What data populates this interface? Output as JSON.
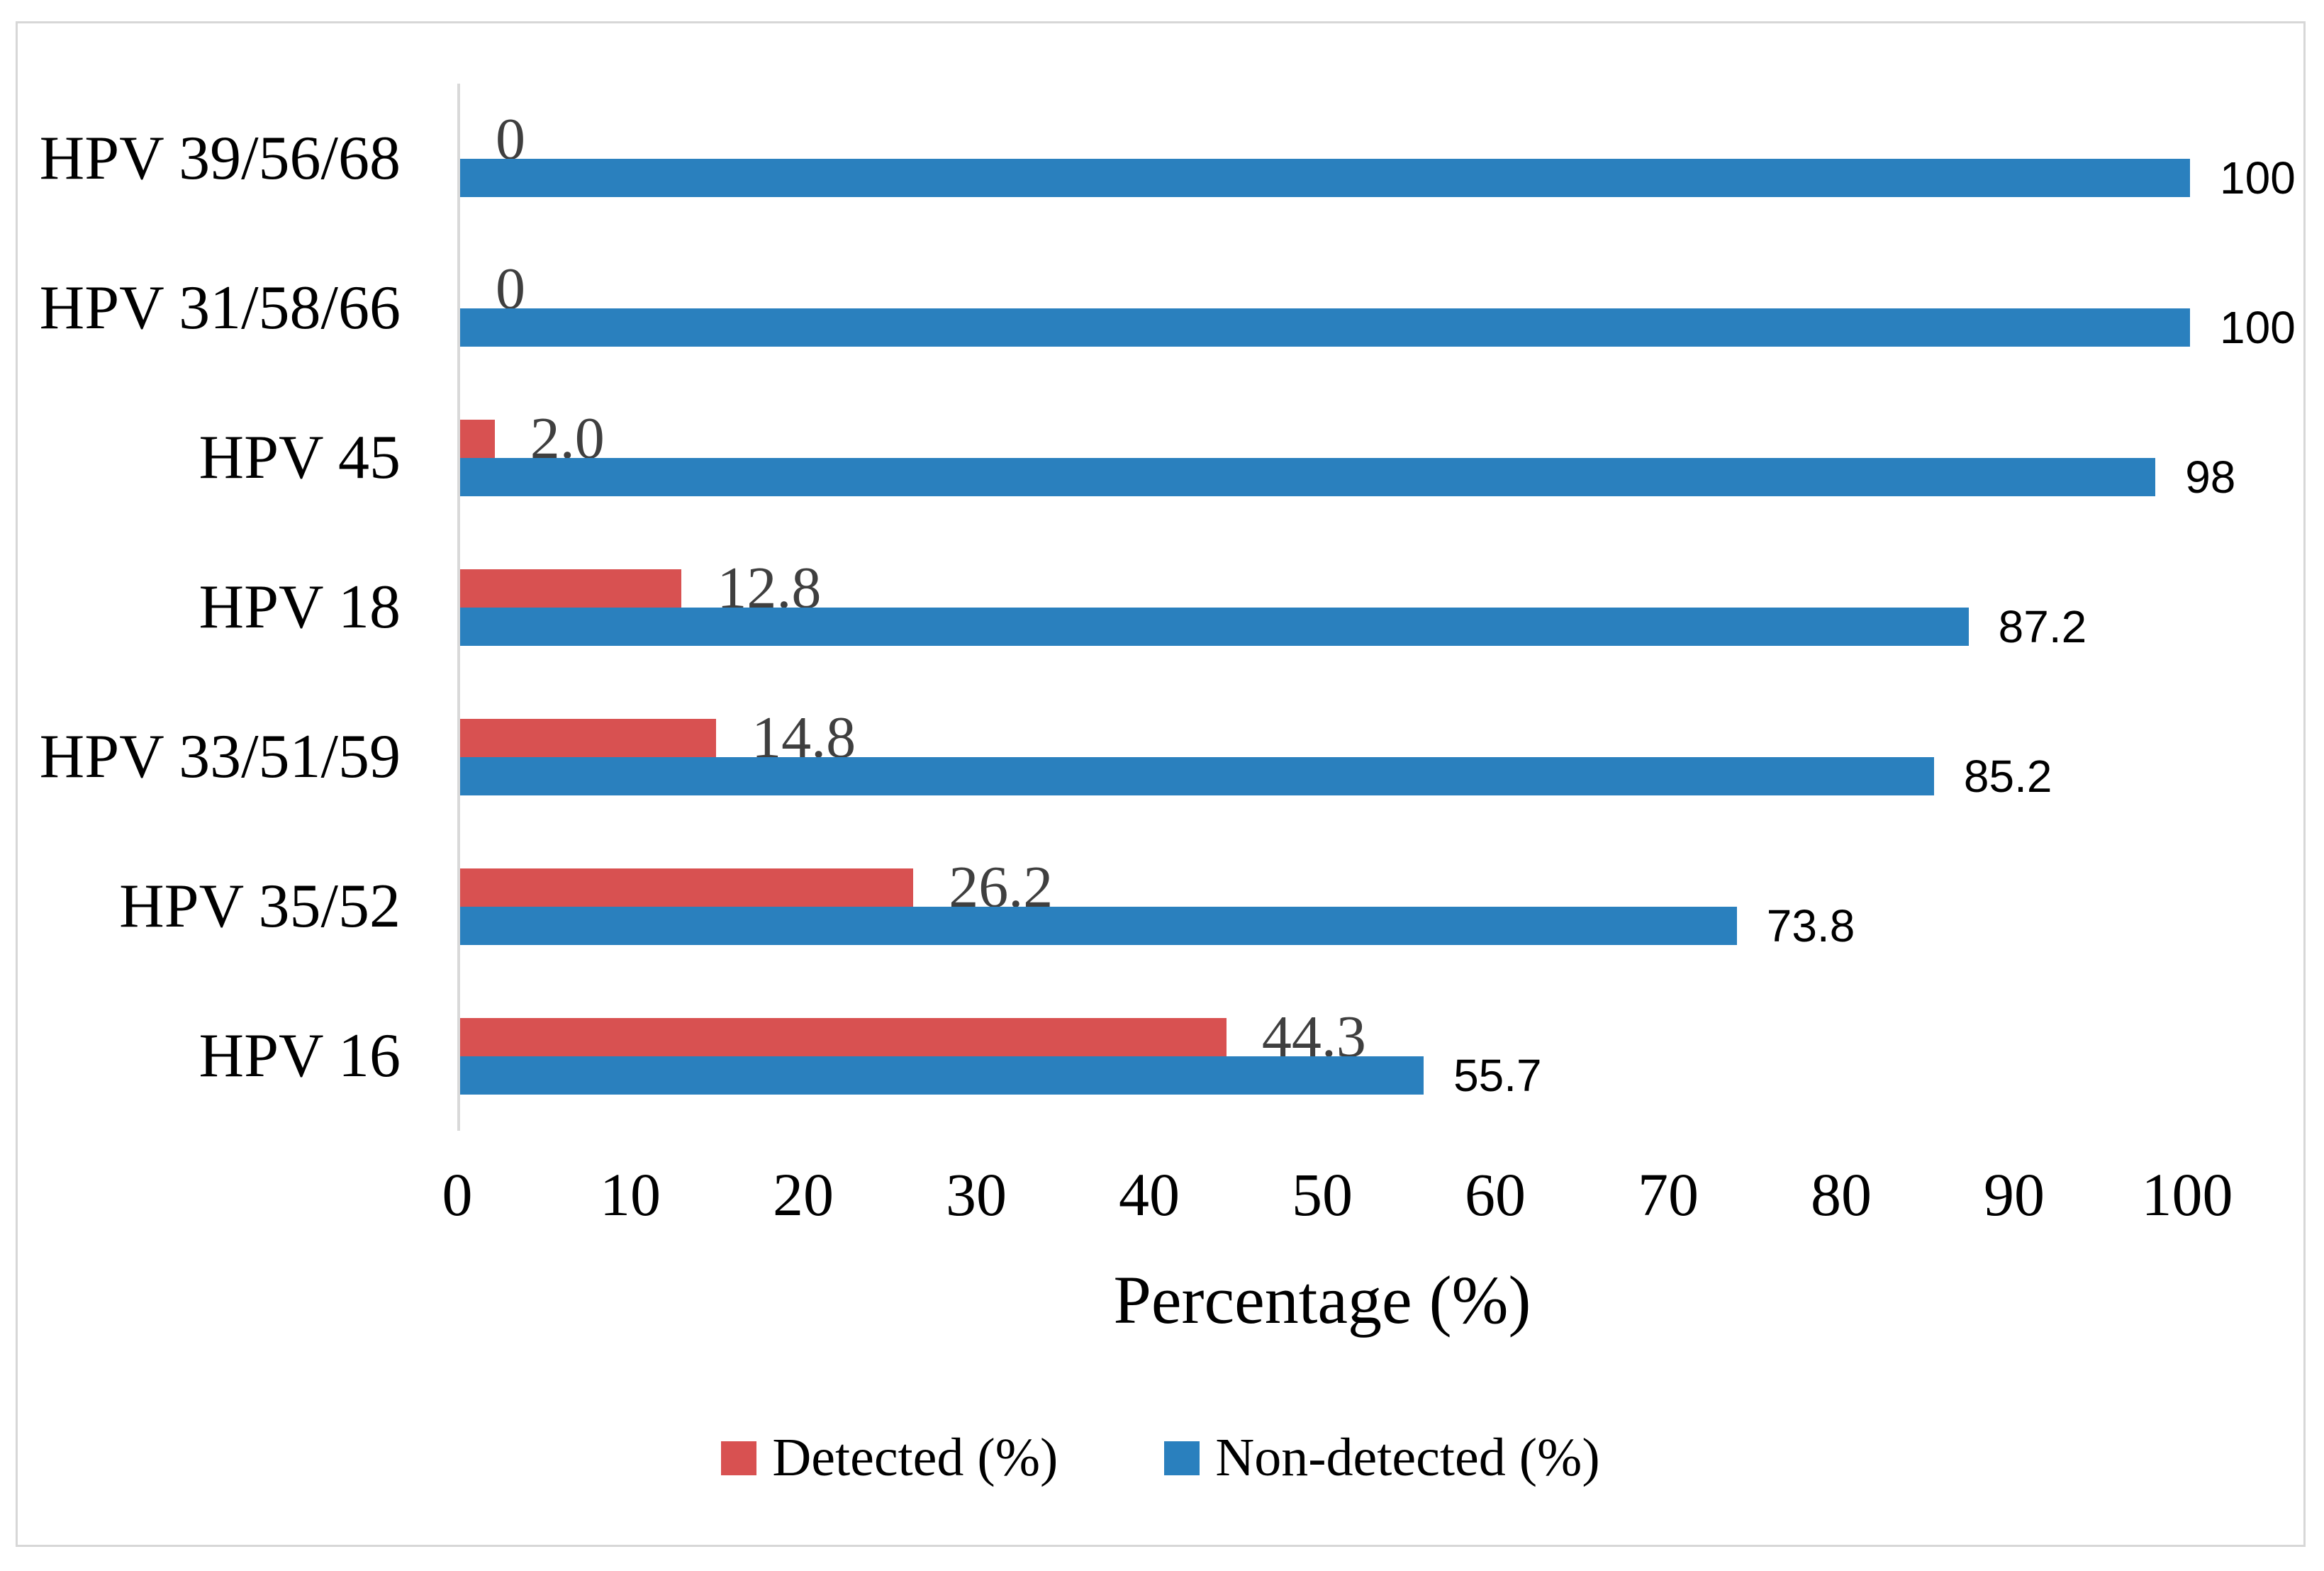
{
  "figure": {
    "background": "#ffffff",
    "frame_border_color": "#d7d7d7",
    "axis_line_color": "#d9d9d9"
  },
  "chart_data": {
    "type": "bar",
    "orientation": "horizontal",
    "title": "",
    "xlabel": "Percentage (%)",
    "categories": [
      "HPV 39/56/68",
      "HPV 31/58/66",
      "HPV 45",
      "HPV 18",
      "HPV 33/51/59",
      "HPV 35/52",
      "HPV 16"
    ],
    "series": [
      {
        "name": "Detected (%)",
        "color": "#d85151",
        "label_color": "#3f3f3f",
        "values": [
          0,
          0,
          2.0,
          12.8,
          14.8,
          26.2,
          44.3
        ],
        "value_labels": [
          "0",
          "0",
          "2.0",
          "12.8",
          "14.8",
          "26.2",
          "44.3"
        ]
      },
      {
        "name": "Non-detected (%)",
        "color": "#2a80be",
        "label_color": "#000000",
        "values": [
          100,
          100,
          98,
          87.2,
          85.2,
          73.8,
          55.7
        ],
        "value_labels": [
          "100",
          "100",
          "98",
          "87.2",
          "85.2",
          "73.8",
          "55.7"
        ]
      }
    ],
    "xlim": [
      0,
      100
    ],
    "x_ticks": [
      "0",
      "10",
      "20",
      "30",
      "40",
      "50",
      "60",
      "70",
      "80",
      "90",
      "100"
    ],
    "gridlines": false,
    "legend_position": "bottom"
  }
}
